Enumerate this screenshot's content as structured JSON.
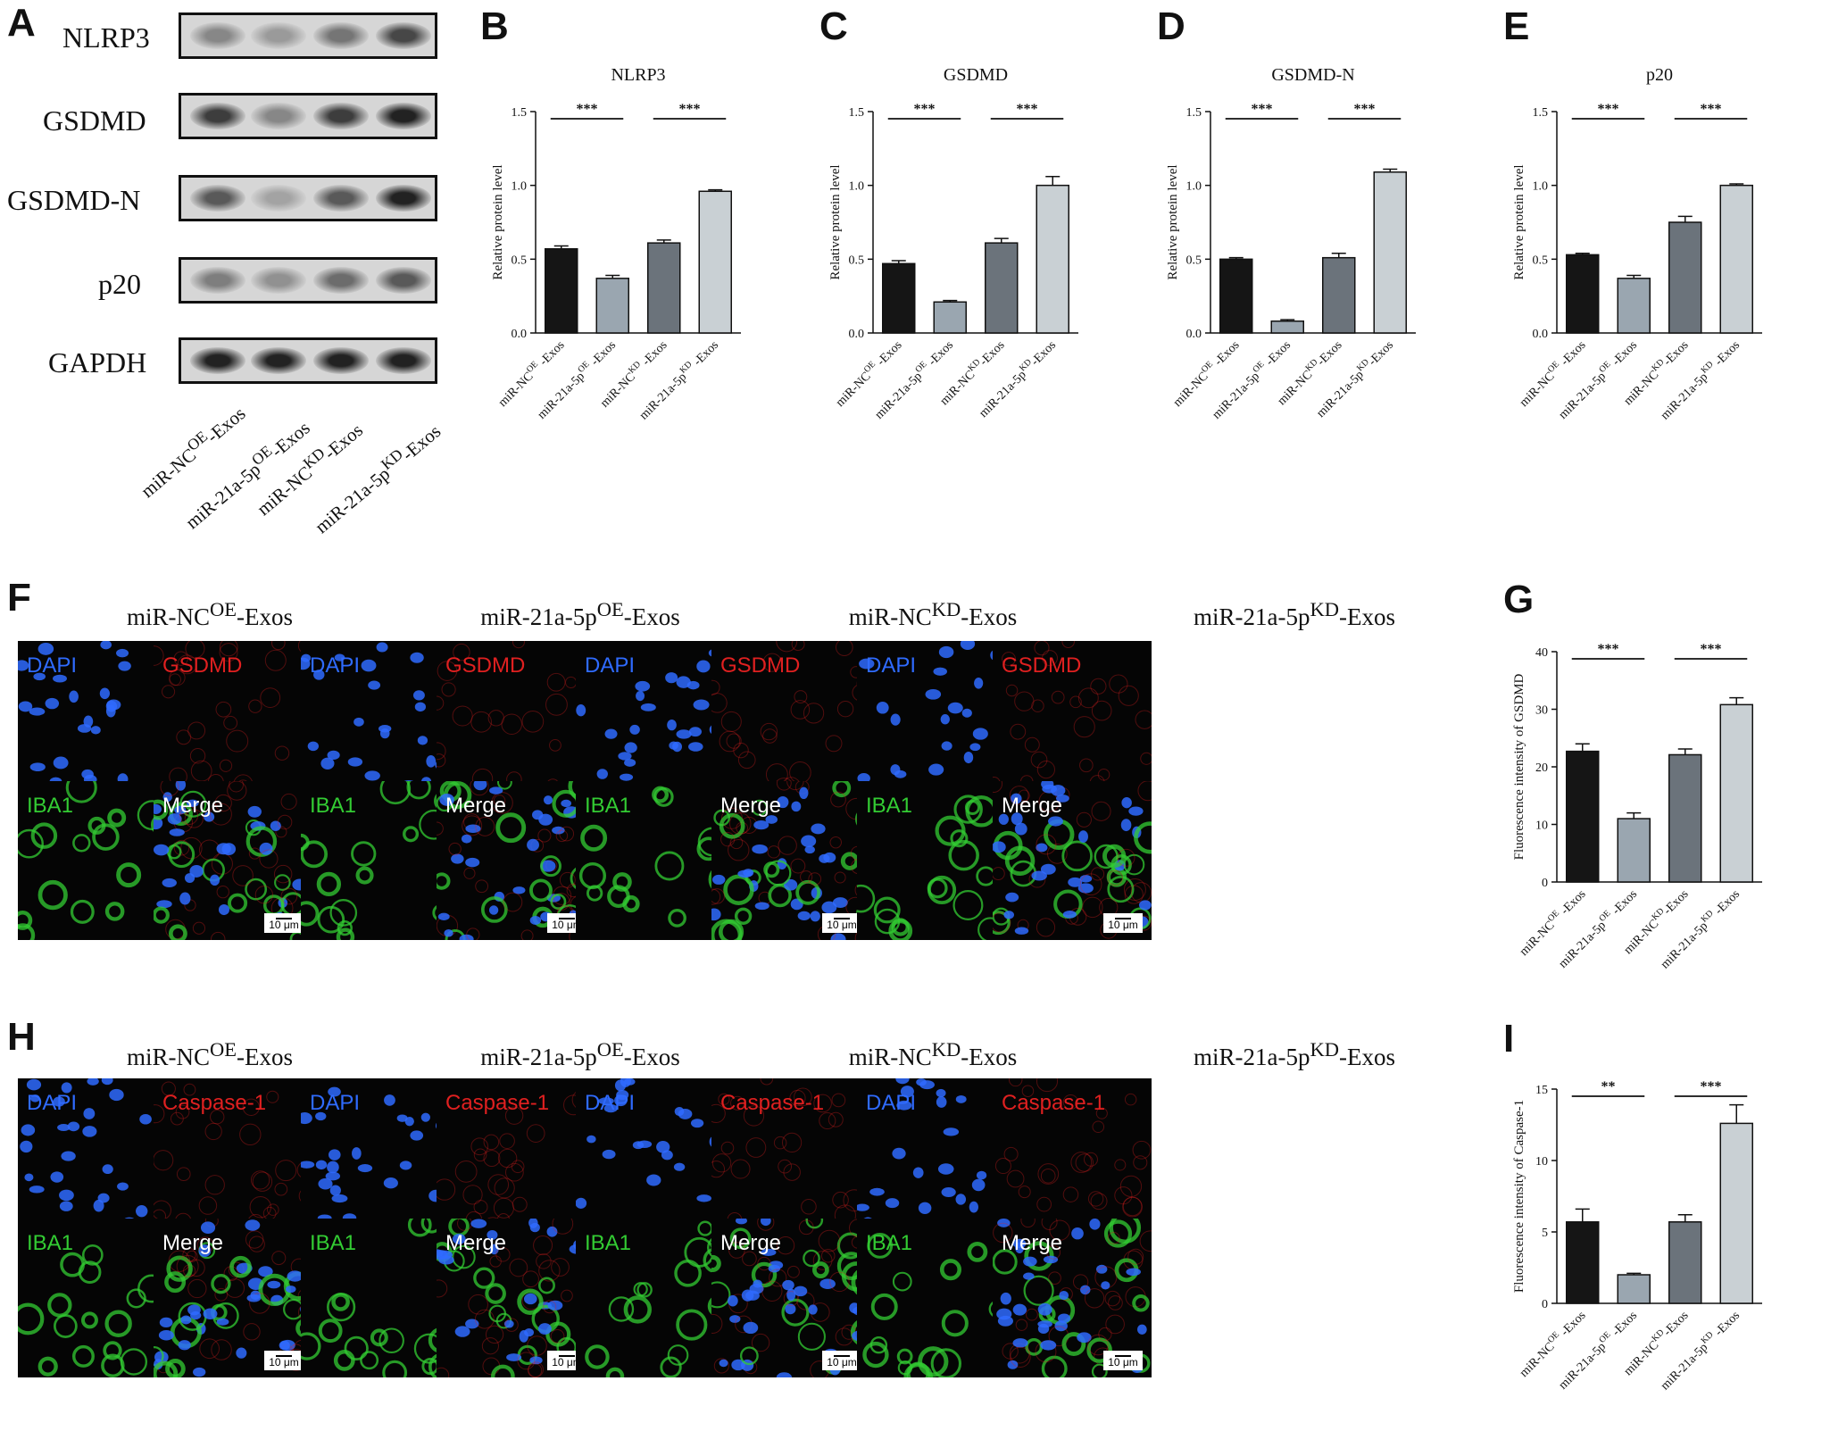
{
  "panel_letters": {
    "A": "A",
    "B": "B",
    "C": "C",
    "D": "D",
    "E": "E",
    "F": "F",
    "G": "G",
    "H": "H",
    "I": "I"
  },
  "western_blot": {
    "proteins": [
      "NLRP3",
      "GSDMD",
      "GSDMD-N",
      "p20",
      "GAPDH"
    ],
    "lanes": [
      {
        "pre": "miR-NC",
        "sup": "OE",
        "post": "-Exos"
      },
      {
        "pre": "miR-21a-5p",
        "sup": "OE",
        "post": "-Exos"
      },
      {
        "pre": "miR-NC",
        "sup": "KD",
        "post": "-Exos"
      },
      {
        "pre": "miR-21a-5p",
        "sup": "KD",
        "post": "-Exos"
      }
    ],
    "band_intensity": [
      [
        0.35,
        0.25,
        0.45,
        0.7
      ],
      [
        0.75,
        0.35,
        0.75,
        0.9
      ],
      [
        0.6,
        0.2,
        0.6,
        0.9
      ],
      [
        0.4,
        0.3,
        0.5,
        0.6
      ],
      [
        0.9,
        0.9,
        0.9,
        0.9
      ]
    ]
  },
  "if_gsdmd": {
    "conditions": [
      {
        "pre": "miR-NC",
        "sup": "OE",
        "post": "-Exos"
      },
      {
        "pre": "miR-21a-5p",
        "sup": "OE",
        "post": "-Exos"
      },
      {
        "pre": "miR-NC",
        "sup": "KD",
        "post": "-Exos"
      },
      {
        "pre": "miR-21a-5p",
        "sup": "KD",
        "post": "-Exos"
      }
    ],
    "channels": [
      "DAPI",
      "GSDMD",
      "IBA1",
      "Merge"
    ],
    "scale_bar": "10 μm"
  },
  "if_caspase": {
    "conditions": [
      {
        "pre": "miR-NC",
        "sup": "OE",
        "post": "-Exos"
      },
      {
        "pre": "miR-21a-5p",
        "sup": "OE",
        "post": "-Exos"
      },
      {
        "pre": "miR-NC",
        "sup": "KD",
        "post": "-Exos"
      },
      {
        "pre": "miR-21a-5p",
        "sup": "KD",
        "post": "-Exos"
      }
    ],
    "channels": [
      "DAPI",
      "Caspase-1",
      "IBA1",
      "Merge"
    ],
    "scale_bar": "10 μm"
  },
  "colors": {
    "bar1": "#151515",
    "bar2": "#9aa6b0",
    "bar3": "#6b737b",
    "bar4": "#c9d0d4",
    "dapi": "#2f6bff",
    "red": "#e02020",
    "green": "#33cc33"
  },
  "chart_data": [
    {
      "id": "B",
      "type": "bar",
      "title": "NLRP3",
      "ylabel": "Relative protein level",
      "ylim": [
        0,
        1.5
      ],
      "yticks": [
        "0.0",
        "0.5",
        "1.0",
        "1.5"
      ],
      "categories": [
        {
          "pre": "miR-NC",
          "sup": "OE",
          "post": " -Exos"
        },
        {
          "pre": "miR-21a-5p",
          "sup": "OE",
          "post": " -Exos"
        },
        {
          "pre": "miR-NC",
          "sup": "KD",
          "post": " -Exos"
        },
        {
          "pre": "miR-21a-5p",
          "sup": "KD",
          "post": " -Exos"
        }
      ],
      "values": [
        0.57,
        0.37,
        0.61,
        0.96
      ],
      "errors": [
        0.02,
        0.02,
        0.02,
        0.01
      ],
      "significance": [
        {
          "pair": [
            0,
            1
          ],
          "label": "***"
        },
        {
          "pair": [
            2,
            3
          ],
          "label": "***"
        }
      ]
    },
    {
      "id": "C",
      "type": "bar",
      "title": "GSDMD",
      "ylabel": "Relative protein level",
      "ylim": [
        0,
        1.5
      ],
      "yticks": [
        "0.0",
        "0.5",
        "1.0",
        "1.5"
      ],
      "categories": [
        {
          "pre": "miR-NC",
          "sup": "OE",
          "post": " -Exos"
        },
        {
          "pre": "miR-21a-5p",
          "sup": "OE",
          "post": " -Exos"
        },
        {
          "pre": "miR-NC",
          "sup": "KD",
          "post": "-Exos"
        },
        {
          "pre": "miR-21a-5p",
          "sup": "KD",
          "post": "-Exos"
        }
      ],
      "values": [
        0.47,
        0.21,
        0.61,
        1.0
      ],
      "errors": [
        0.02,
        0.01,
        0.03,
        0.06
      ],
      "significance": [
        {
          "pair": [
            0,
            1
          ],
          "label": "***"
        },
        {
          "pair": [
            2,
            3
          ],
          "label": "***"
        }
      ]
    },
    {
      "id": "D",
      "type": "bar",
      "title": "GSDMD-N",
      "ylabel": "Relative protein level",
      "ylim": [
        0,
        1.5
      ],
      "yticks": [
        "0.0",
        "0.5",
        "1.0",
        "1.5"
      ],
      "categories": [
        {
          "pre": "miR-NC",
          "sup": "OE",
          "post": " -Exos"
        },
        {
          "pre": "miR-21a-5p",
          "sup": "OE",
          "post": " -Exos"
        },
        {
          "pre": "miR-NC",
          "sup": "KD",
          "post": "-Exos"
        },
        {
          "pre": "miR-21a-5p",
          "sup": "KD",
          "post": "-Exos"
        }
      ],
      "values": [
        0.5,
        0.08,
        0.51,
        1.09
      ],
      "errors": [
        0.01,
        0.01,
        0.03,
        0.02
      ],
      "significance": [
        {
          "pair": [
            0,
            1
          ],
          "label": "***"
        },
        {
          "pair": [
            2,
            3
          ],
          "label": "***"
        }
      ]
    },
    {
      "id": "E",
      "type": "bar",
      "title": "p20",
      "ylabel": "Relative protein level",
      "ylim": [
        0,
        1.5
      ],
      "yticks": [
        "0.0",
        "0.5",
        "1.0",
        "1.5"
      ],
      "categories": [
        {
          "pre": "miR-NC",
          "sup": "OE",
          "post": " -Exos"
        },
        {
          "pre": "miR-21a-5p",
          "sup": "OE",
          "post": " -Exos"
        },
        {
          "pre": "miR-NC",
          "sup": "KD",
          "post": "-Exos"
        },
        {
          "pre": "miR-21a-5p",
          "sup": "KD",
          "post": " -Exos"
        }
      ],
      "values": [
        0.53,
        0.37,
        0.75,
        1.0
      ],
      "errors": [
        0.01,
        0.02,
        0.04,
        0.01
      ],
      "significance": [
        {
          "pair": [
            0,
            1
          ],
          "label": "***"
        },
        {
          "pair": [
            2,
            3
          ],
          "label": "***"
        }
      ]
    },
    {
      "id": "G",
      "type": "bar",
      "title": "",
      "ylabel": "Fluorescence intensity of GSDMD",
      "ylim": [
        0,
        40
      ],
      "yticks": [
        "0",
        "10",
        "20",
        "30",
        "40"
      ],
      "categories": [
        {
          "pre": "miR-NC",
          "sup": "OE",
          "post": " -Exos"
        },
        {
          "pre": "miR-21a-5p",
          "sup": "OE",
          "post": " -Exos"
        },
        {
          "pre": "miR-NC",
          "sup": "KD",
          "post": "-Exos"
        },
        {
          "pre": "miR-21a-5p",
          "sup": "KD",
          "post": " -Exos"
        }
      ],
      "values": [
        22.7,
        11.0,
        22.1,
        30.8
      ],
      "errors": [
        1.3,
        1.0,
        1.0,
        1.2
      ],
      "significance": [
        {
          "pair": [
            0,
            1
          ],
          "label": "***"
        },
        {
          "pair": [
            2,
            3
          ],
          "label": "***"
        }
      ]
    },
    {
      "id": "I",
      "type": "bar",
      "title": "",
      "ylabel": "Fluorescence intensity of Caspase-1",
      "ylim": [
        0,
        15
      ],
      "yticks": [
        "0",
        "5",
        "10",
        "15"
      ],
      "categories": [
        {
          "pre": "miR-NC",
          "sup": "OE",
          "post": " -Exos"
        },
        {
          "pre": "miR-21a-5p",
          "sup": "OE",
          "post": " -Exos"
        },
        {
          "pre": "miR-NC",
          "sup": "KD",
          "post": "-Exos"
        },
        {
          "pre": "miR-21a-5p",
          "sup": "KD",
          "post": " -Exos"
        }
      ],
      "values": [
        5.7,
        2.0,
        5.7,
        12.6
      ],
      "errors": [
        0.9,
        0.1,
        0.5,
        1.3
      ],
      "significance": [
        {
          "pair": [
            0,
            1
          ],
          "label": "**"
        },
        {
          "pair": [
            2,
            3
          ],
          "label": "***"
        }
      ]
    }
  ]
}
